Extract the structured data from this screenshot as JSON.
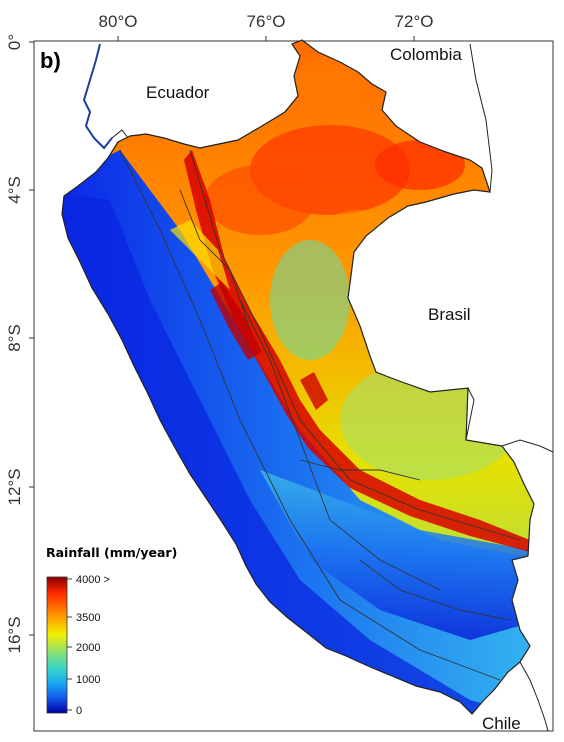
{
  "panel_label": "b)",
  "x_ticks": [
    "80°O",
    "76°O",
    "72°O"
  ],
  "y_ticks": [
    "0°",
    "4°S",
    "8°S",
    "12°S",
    "16°S"
  ],
  "countries": [
    "Ecuador",
    "Colombia",
    "Brasil",
    "Chile"
  ],
  "legend": {
    "title": "Rainfall (mm/year)",
    "labels": [
      "4000 >",
      "3500",
      "2000",
      "1000",
      "0"
    ],
    "colors": [
      "#8b0000",
      "#ff2a00",
      "#ffa000",
      "#f2f000",
      "#8fe070",
      "#38d6c8",
      "#19a8f0",
      "#1660f0",
      "#0a1ee0",
      "#0000a0"
    ]
  },
  "colors": {
    "ocean": "#ffffff",
    "land_neighbor": "#ffffff",
    "outline": "#222222"
  }
}
